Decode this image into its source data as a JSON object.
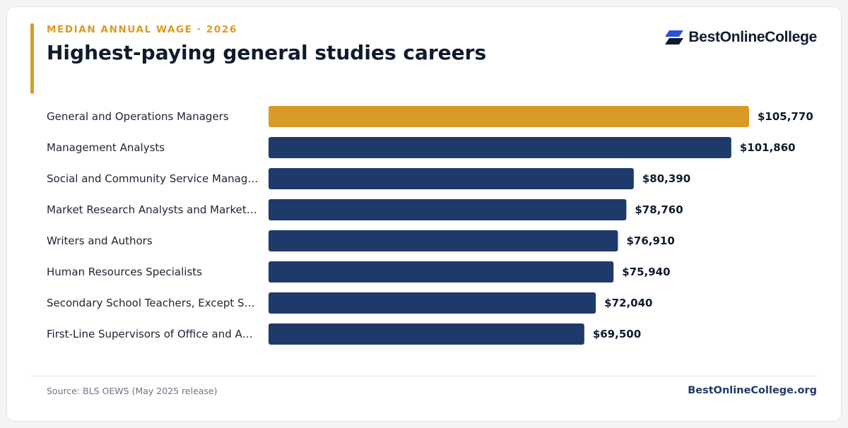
{
  "header": {
    "eyebrow": "MEDIAN ANNUAL WAGE · 2026",
    "title": "Highest-paying general studies careers"
  },
  "brand": {
    "logo_icon": "stacked-parallelograms-icon",
    "name": "BestOnlineCollege"
  },
  "colors": {
    "accent": "#da9a28",
    "bar": "#1e3a6b",
    "text": "#0f1b2d"
  },
  "chart_data": {
    "type": "bar",
    "orientation": "horizontal",
    "categories": [
      "General and Operations Managers",
      "Management Analysts",
      "Social and Community Service Manag…",
      "Market Research Analysts and Market…",
      "Writers and Authors",
      "Human Resources Specialists",
      "Secondary School Teachers, Except S…",
      "First-Line Supervisors of Office and A…"
    ],
    "values": [
      105770,
      101860,
      80390,
      78760,
      76910,
      75940,
      72040,
      69500
    ],
    "value_labels": [
      "$105,770",
      "$101,860",
      "$80,390",
      "$78,760",
      "$76,910",
      "$75,940",
      "$72,040",
      "$69,500"
    ],
    "highlight_index": 0,
    "xlim": [
      0,
      105770
    ],
    "grid": false,
    "legend": "none"
  },
  "footer": {
    "source": "Source: BLS OEWS (May 2025 release)",
    "site": "BestOnlineCollege.org"
  }
}
